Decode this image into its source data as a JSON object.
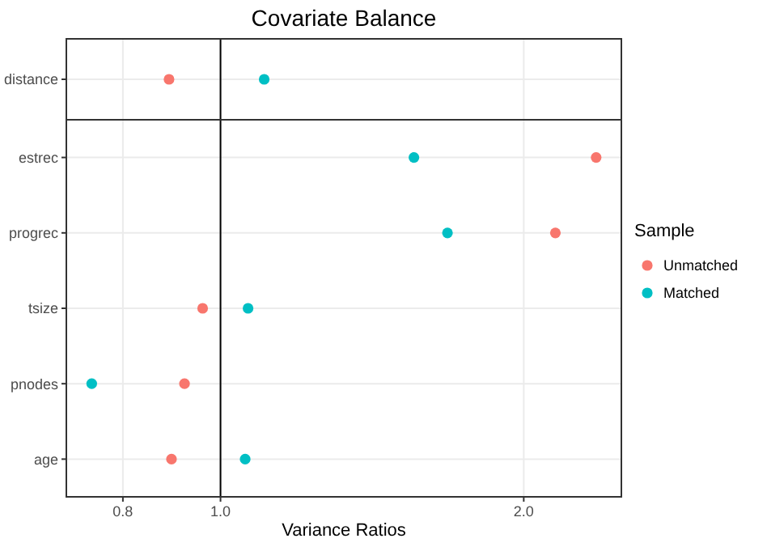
{
  "chart_data": [
    {
      "type": "scatter",
      "title": "Covariate Balance",
      "categories": [
        "distance"
      ],
      "orientation": "horizontal",
      "log": "x",
      "xlim": [
        0.703,
        2.5
      ],
      "tick_labels": "y",
      "grid": true,
      "marker": "circle",
      "ref_lines": [
        {
          "axis": "x",
          "value": 1
        }
      ],
      "series": [
        {
          "color": "#f8766d",
          "values": [
            0.889
          ]
        },
        {
          "color": "#00bfc4",
          "values": [
            1.105
          ]
        }
      ]
    },
    {
      "type": "scatter",
      "xlabel": "Variance Ratios",
      "legend_title": "Sample",
      "categories": [
        "estrec",
        "progrec",
        "tsize",
        "pnodes",
        "age"
      ],
      "orientation": "horizontal",
      "log": "x",
      "xlim": [
        0.703,
        2.5
      ],
      "xticks": [
        0.8,
        {
          "value": 1,
          "label": "1.0"
        },
        {
          "value": 2,
          "label": "2.0"
        }
      ],
      "grid": true,
      "legend": "right",
      "marker": "circle",
      "ref_lines": [
        {
          "axis": "x",
          "value": 1
        }
      ],
      "series": [
        {
          "name": "Unmatched",
          "color": "#f8766d",
          "values": [
            2.36,
            2.15,
            0.96,
            0.921,
            0.894
          ]
        },
        {
          "name": "Matched",
          "color": "#00bfc4",
          "values": [
            1.556,
            1.68,
            1.065,
            0.745,
            1.058
          ]
        }
      ]
    }
  ]
}
